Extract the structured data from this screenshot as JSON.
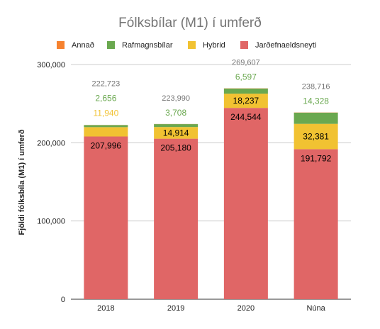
{
  "chart_data": {
    "type": "bar",
    "stacked": true,
    "title": "Fólksbílar (M1) í umferð",
    "ylabel": "Fjöldi fólksbíla (M1) í umferð",
    "xlabel": "",
    "categories": [
      "2018",
      "2019",
      "2020",
      "Núna"
    ],
    "ylim": [
      0,
      300000
    ],
    "yticks": [
      0,
      100000,
      200000,
      300000
    ],
    "ytick_labels": [
      "0",
      "100,000",
      "200,000",
      "300,000"
    ],
    "grid": true,
    "legend_position": "top",
    "legend": [
      "Annað",
      "Rafmagnsbílar",
      "Hybrid",
      "Jarðefnaeldsneyti"
    ],
    "series": [
      {
        "name": "Jarðefnaeldsneyti",
        "color": "#e06666",
        "values": [
          207996,
          205180,
          244544,
          191792
        ],
        "labels": [
          "207,996",
          "205,180",
          "244,544",
          "191,792"
        ]
      },
      {
        "name": "Hybrid",
        "color": "#f1c232",
        "values": [
          11940,
          14914,
          18237,
          32381
        ],
        "labels": [
          "11,940",
          "14,914",
          "18,237",
          "32,381"
        ]
      },
      {
        "name": "Rafmagnsbílar",
        "color": "#6aa84f",
        "values": [
          2656,
          3708,
          6597,
          14328
        ],
        "labels": [
          "2,656",
          "3,708",
          "6,597",
          "14,328"
        ]
      },
      {
        "name": "Annað",
        "color": "#f6822f",
        "values": [
          131,
          188,
          229,
          215
        ]
      }
    ],
    "totals": [
      222723,
      223990,
      269607,
      238716
    ],
    "total_labels": [
      "222,723",
      "223,990",
      "269,607",
      "238,716"
    ]
  }
}
